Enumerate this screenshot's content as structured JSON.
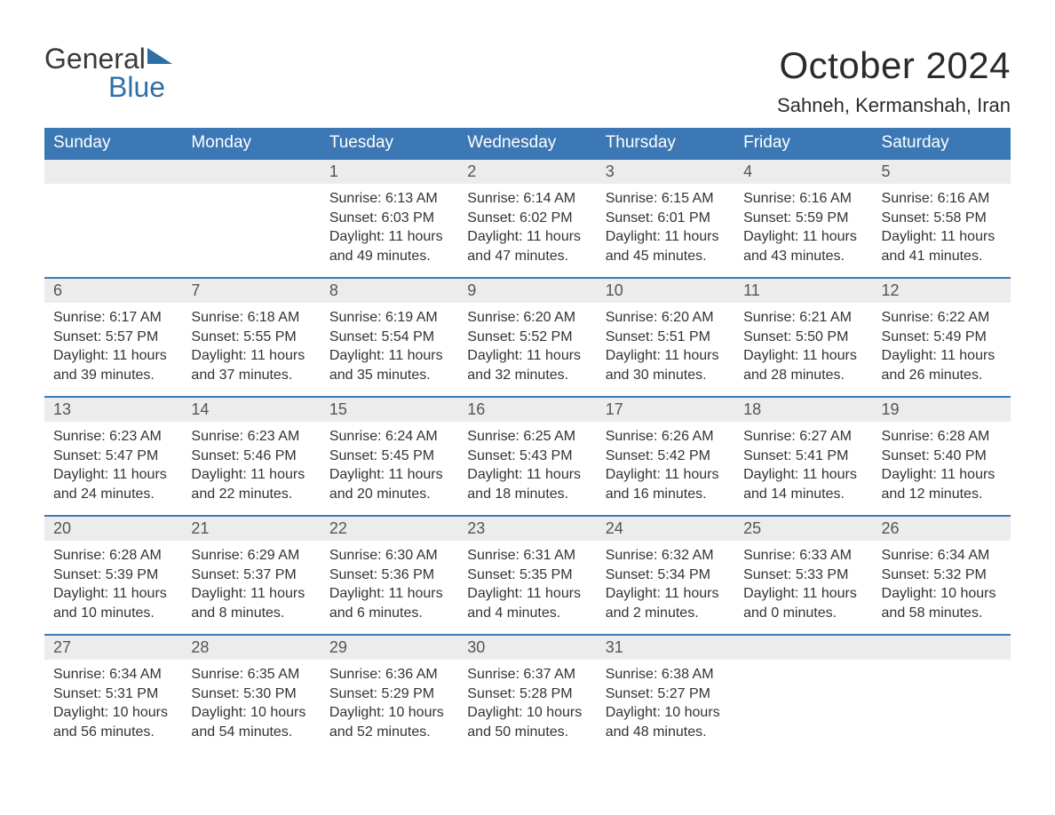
{
  "brand": {
    "word1": "General",
    "word2": "Blue",
    "color_general": "#3a3a3a",
    "color_blue": "#2f6fa7",
    "triangle_color": "#2f6fa7"
  },
  "header": {
    "title": "October 2024",
    "location": "Sahneh, Kermanshah, Iran"
  },
  "styling": {
    "header_bg": "#3b78b5",
    "header_text": "#ffffff",
    "row_divider": "#3b78b5",
    "daynum_bg": "#ececec",
    "daynum_text": "#555555",
    "body_text": "#333333",
    "page_bg": "#ffffff",
    "title_fontsize": 42,
    "location_fontsize": 22,
    "dayhead_fontsize": 19,
    "daynum_fontsize": 18,
    "body_fontsize": 16,
    "columns": 7,
    "rows": 5
  },
  "columns": [
    "Sunday",
    "Monday",
    "Tuesday",
    "Wednesday",
    "Thursday",
    "Friday",
    "Saturday"
  ],
  "weeks": [
    [
      {
        "day": "",
        "sunrise": "",
        "sunset": "",
        "daylight": ""
      },
      {
        "day": "",
        "sunrise": "",
        "sunset": "",
        "daylight": ""
      },
      {
        "day": "1",
        "sunrise": "Sunrise: 6:13 AM",
        "sunset": "Sunset: 6:03 PM",
        "daylight": "Daylight: 11 hours and 49 minutes."
      },
      {
        "day": "2",
        "sunrise": "Sunrise: 6:14 AM",
        "sunset": "Sunset: 6:02 PM",
        "daylight": "Daylight: 11 hours and 47 minutes."
      },
      {
        "day": "3",
        "sunrise": "Sunrise: 6:15 AM",
        "sunset": "Sunset: 6:01 PM",
        "daylight": "Daylight: 11 hours and 45 minutes."
      },
      {
        "day": "4",
        "sunrise": "Sunrise: 6:16 AM",
        "sunset": "Sunset: 5:59 PM",
        "daylight": "Daylight: 11 hours and 43 minutes."
      },
      {
        "day": "5",
        "sunrise": "Sunrise: 6:16 AM",
        "sunset": "Sunset: 5:58 PM",
        "daylight": "Daylight: 11 hours and 41 minutes."
      }
    ],
    [
      {
        "day": "6",
        "sunrise": "Sunrise: 6:17 AM",
        "sunset": "Sunset: 5:57 PM",
        "daylight": "Daylight: 11 hours and 39 minutes."
      },
      {
        "day": "7",
        "sunrise": "Sunrise: 6:18 AM",
        "sunset": "Sunset: 5:55 PM",
        "daylight": "Daylight: 11 hours and 37 minutes."
      },
      {
        "day": "8",
        "sunrise": "Sunrise: 6:19 AM",
        "sunset": "Sunset: 5:54 PM",
        "daylight": "Daylight: 11 hours and 35 minutes."
      },
      {
        "day": "9",
        "sunrise": "Sunrise: 6:20 AM",
        "sunset": "Sunset: 5:52 PM",
        "daylight": "Daylight: 11 hours and 32 minutes."
      },
      {
        "day": "10",
        "sunrise": "Sunrise: 6:20 AM",
        "sunset": "Sunset: 5:51 PM",
        "daylight": "Daylight: 11 hours and 30 minutes."
      },
      {
        "day": "11",
        "sunrise": "Sunrise: 6:21 AM",
        "sunset": "Sunset: 5:50 PM",
        "daylight": "Daylight: 11 hours and 28 minutes."
      },
      {
        "day": "12",
        "sunrise": "Sunrise: 6:22 AM",
        "sunset": "Sunset: 5:49 PM",
        "daylight": "Daylight: 11 hours and 26 minutes."
      }
    ],
    [
      {
        "day": "13",
        "sunrise": "Sunrise: 6:23 AM",
        "sunset": "Sunset: 5:47 PM",
        "daylight": "Daylight: 11 hours and 24 minutes."
      },
      {
        "day": "14",
        "sunrise": "Sunrise: 6:23 AM",
        "sunset": "Sunset: 5:46 PM",
        "daylight": "Daylight: 11 hours and 22 minutes."
      },
      {
        "day": "15",
        "sunrise": "Sunrise: 6:24 AM",
        "sunset": "Sunset: 5:45 PM",
        "daylight": "Daylight: 11 hours and 20 minutes."
      },
      {
        "day": "16",
        "sunrise": "Sunrise: 6:25 AM",
        "sunset": "Sunset: 5:43 PM",
        "daylight": "Daylight: 11 hours and 18 minutes."
      },
      {
        "day": "17",
        "sunrise": "Sunrise: 6:26 AM",
        "sunset": "Sunset: 5:42 PM",
        "daylight": "Daylight: 11 hours and 16 minutes."
      },
      {
        "day": "18",
        "sunrise": "Sunrise: 6:27 AM",
        "sunset": "Sunset: 5:41 PM",
        "daylight": "Daylight: 11 hours and 14 minutes."
      },
      {
        "day": "19",
        "sunrise": "Sunrise: 6:28 AM",
        "sunset": "Sunset: 5:40 PM",
        "daylight": "Daylight: 11 hours and 12 minutes."
      }
    ],
    [
      {
        "day": "20",
        "sunrise": "Sunrise: 6:28 AM",
        "sunset": "Sunset: 5:39 PM",
        "daylight": "Daylight: 11 hours and 10 minutes."
      },
      {
        "day": "21",
        "sunrise": "Sunrise: 6:29 AM",
        "sunset": "Sunset: 5:37 PM",
        "daylight": "Daylight: 11 hours and 8 minutes."
      },
      {
        "day": "22",
        "sunrise": "Sunrise: 6:30 AM",
        "sunset": "Sunset: 5:36 PM",
        "daylight": "Daylight: 11 hours and 6 minutes."
      },
      {
        "day": "23",
        "sunrise": "Sunrise: 6:31 AM",
        "sunset": "Sunset: 5:35 PM",
        "daylight": "Daylight: 11 hours and 4 minutes."
      },
      {
        "day": "24",
        "sunrise": "Sunrise: 6:32 AM",
        "sunset": "Sunset: 5:34 PM",
        "daylight": "Daylight: 11 hours and 2 minutes."
      },
      {
        "day": "25",
        "sunrise": "Sunrise: 6:33 AM",
        "sunset": "Sunset: 5:33 PM",
        "daylight": "Daylight: 11 hours and 0 minutes."
      },
      {
        "day": "26",
        "sunrise": "Sunrise: 6:34 AM",
        "sunset": "Sunset: 5:32 PM",
        "daylight": "Daylight: 10 hours and 58 minutes."
      }
    ],
    [
      {
        "day": "27",
        "sunrise": "Sunrise: 6:34 AM",
        "sunset": "Sunset: 5:31 PM",
        "daylight": "Daylight: 10 hours and 56 minutes."
      },
      {
        "day": "28",
        "sunrise": "Sunrise: 6:35 AM",
        "sunset": "Sunset: 5:30 PM",
        "daylight": "Daylight: 10 hours and 54 minutes."
      },
      {
        "day": "29",
        "sunrise": "Sunrise: 6:36 AM",
        "sunset": "Sunset: 5:29 PM",
        "daylight": "Daylight: 10 hours and 52 minutes."
      },
      {
        "day": "30",
        "sunrise": "Sunrise: 6:37 AM",
        "sunset": "Sunset: 5:28 PM",
        "daylight": "Daylight: 10 hours and 50 minutes."
      },
      {
        "day": "31",
        "sunrise": "Sunrise: 6:38 AM",
        "sunset": "Sunset: 5:27 PM",
        "daylight": "Daylight: 10 hours and 48 minutes."
      },
      {
        "day": "",
        "sunrise": "",
        "sunset": "",
        "daylight": ""
      },
      {
        "day": "",
        "sunrise": "",
        "sunset": "",
        "daylight": ""
      }
    ]
  ]
}
